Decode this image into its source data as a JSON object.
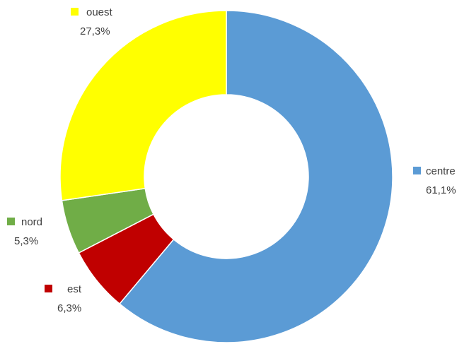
{
  "chart_data": {
    "type": "pie",
    "donut": true,
    "title": "",
    "slices": [
      {
        "label": "centre",
        "value": 61.1,
        "value_label": "61,1%",
        "color": "#5b9bd5"
      },
      {
        "label": "est",
        "value": 6.3,
        "value_label": "6,3%",
        "color": "#c00000"
      },
      {
        "label": "nord",
        "value": 5.3,
        "value_label": "5,3%",
        "color": "#70ad47"
      },
      {
        "label": "ouest",
        "value": 27.3,
        "value_label": "27,3%",
        "color": "#ffff00"
      }
    ],
    "start": "top",
    "direction": "clockwise",
    "legend": "data labels beside slices"
  }
}
